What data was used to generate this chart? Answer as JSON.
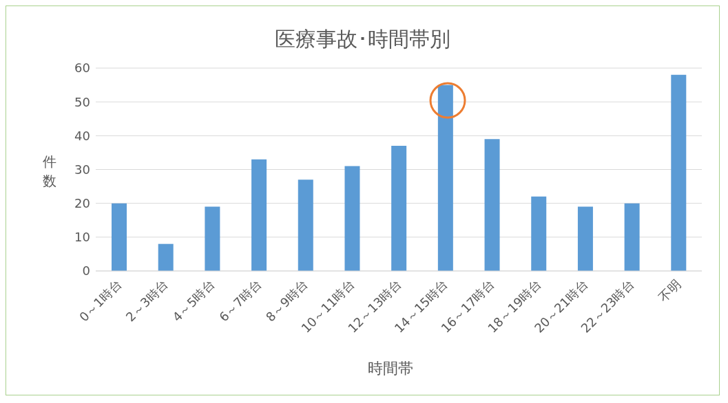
{
  "chart_data": {
    "type": "bar",
    "title": "医療事故･時間帯別",
    "xlabel": "時間帯",
    "ylabel": "件数",
    "categories": [
      "0～1時台",
      "2～3時台",
      "4～5時台",
      "6～7時台",
      "8～9時台",
      "10～11時台",
      "12～13時台",
      "14～15時台",
      "16～17時台",
      "18～19時台",
      "20～21時台",
      "22～23時台",
      "不明"
    ],
    "values": [
      20,
      8,
      19,
      33,
      27,
      31,
      37,
      55,
      39,
      22,
      19,
      20,
      58
    ],
    "color": "#5b9bd5",
    "ylim": [
      0,
      60
    ],
    "yticks": [
      0,
      10,
      20,
      30,
      40,
      50,
      60
    ],
    "grid": "y"
  }
}
